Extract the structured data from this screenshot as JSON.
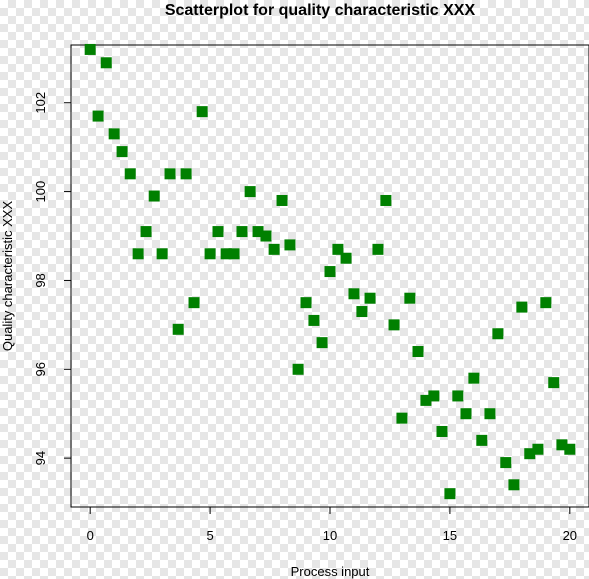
{
  "chart_data": {
    "type": "scatter",
    "title": "Scatterplot for quality characteristic XXX",
    "xlabel": "Process input",
    "ylabel": "Quality characteristic XXX",
    "xlim": [
      -0.8,
      20.8
    ],
    "ylim": [
      92.9,
      103.3
    ],
    "xticks": [
      0,
      5,
      10,
      15,
      20
    ],
    "yticks": [
      94,
      96,
      98,
      100,
      102
    ],
    "grid": false,
    "marker_color": "#008000",
    "points": [
      {
        "x": 0.0,
        "y": 103.2
      },
      {
        "x": 0.33,
        "y": 101.7
      },
      {
        "x": 0.67,
        "y": 102.9
      },
      {
        "x": 1.0,
        "y": 101.3
      },
      {
        "x": 1.33,
        "y": 100.9
      },
      {
        "x": 1.67,
        "y": 100.4
      },
      {
        "x": 2.0,
        "y": 98.6
      },
      {
        "x": 2.33,
        "y": 99.1
      },
      {
        "x": 2.67,
        "y": 99.9
      },
      {
        "x": 3.0,
        "y": 98.6
      },
      {
        "x": 3.33,
        "y": 100.4
      },
      {
        "x": 3.67,
        "y": 96.9
      },
      {
        "x": 4.0,
        "y": 100.4
      },
      {
        "x": 4.33,
        "y": 97.5
      },
      {
        "x": 4.67,
        "y": 101.8
      },
      {
        "x": 5.0,
        "y": 98.6
      },
      {
        "x": 5.33,
        "y": 99.1
      },
      {
        "x": 5.67,
        "y": 98.6
      },
      {
        "x": 6.0,
        "y": 98.6
      },
      {
        "x": 6.33,
        "y": 99.1
      },
      {
        "x": 6.67,
        "y": 100.0
      },
      {
        "x": 7.0,
        "y": 99.1
      },
      {
        "x": 7.33,
        "y": 99.0
      },
      {
        "x": 7.67,
        "y": 98.7
      },
      {
        "x": 8.0,
        "y": 99.8
      },
      {
        "x": 8.33,
        "y": 98.8
      },
      {
        "x": 8.67,
        "y": 96.0
      },
      {
        "x": 9.0,
        "y": 97.5
      },
      {
        "x": 9.33,
        "y": 97.1
      },
      {
        "x": 9.67,
        "y": 96.6
      },
      {
        "x": 10.0,
        "y": 98.2
      },
      {
        "x": 10.33,
        "y": 98.7
      },
      {
        "x": 10.67,
        "y": 98.5
      },
      {
        "x": 11.0,
        "y": 97.7
      },
      {
        "x": 11.33,
        "y": 97.3
      },
      {
        "x": 11.67,
        "y": 97.6
      },
      {
        "x": 12.0,
        "y": 98.7
      },
      {
        "x": 12.33,
        "y": 99.8
      },
      {
        "x": 12.67,
        "y": 97.0
      },
      {
        "x": 13.0,
        "y": 94.9
      },
      {
        "x": 13.33,
        "y": 97.6
      },
      {
        "x": 13.67,
        "y": 96.4
      },
      {
        "x": 14.0,
        "y": 95.3
      },
      {
        "x": 14.33,
        "y": 95.4
      },
      {
        "x": 14.67,
        "y": 94.6
      },
      {
        "x": 15.0,
        "y": 93.2
      },
      {
        "x": 15.33,
        "y": 95.4
      },
      {
        "x": 15.67,
        "y": 95.0
      },
      {
        "x": 16.0,
        "y": 95.8
      },
      {
        "x": 16.33,
        "y": 94.4
      },
      {
        "x": 16.67,
        "y": 95.0
      },
      {
        "x": 17.0,
        "y": 96.8
      },
      {
        "x": 17.33,
        "y": 93.9
      },
      {
        "x": 17.67,
        "y": 93.4
      },
      {
        "x": 18.0,
        "y": 97.4
      },
      {
        "x": 18.33,
        "y": 94.1
      },
      {
        "x": 18.67,
        "y": 94.2
      },
      {
        "x": 19.0,
        "y": 97.5
      },
      {
        "x": 19.33,
        "y": 95.7
      },
      {
        "x": 19.67,
        "y": 94.3
      },
      {
        "x": 20.0,
        "y": 94.2
      }
    ]
  }
}
